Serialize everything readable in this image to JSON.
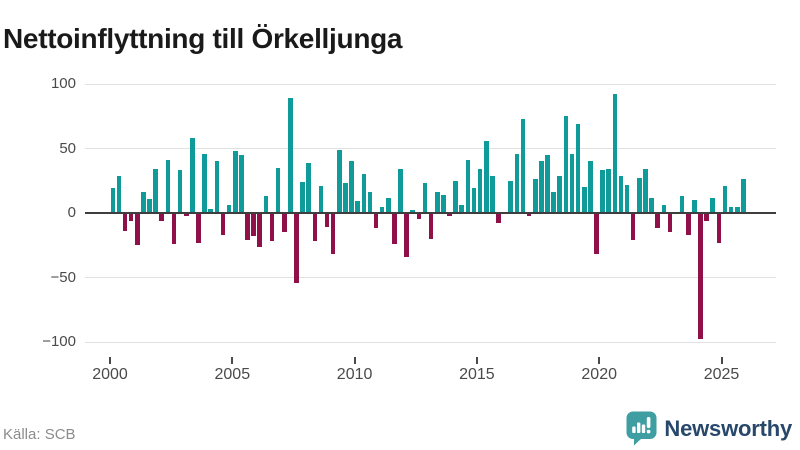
{
  "title": "Nettoinflyttning till Örkelljunga",
  "source": "Källa: SCB",
  "branding": {
    "name": "Newsworthy",
    "icon": "newsworthy-speech-bubble-chart-icon"
  },
  "colors": {
    "positive": "#0e9b9a",
    "negative": "#90104a",
    "zero_axis": "#3e3e3e",
    "grid": "#e1e1e1",
    "tick_label": "#4a4a4a",
    "title": "#1a1a1a",
    "source_text": "#8c8c8c",
    "brand_text": "#28486b",
    "brand_icon": "#3e9ea1"
  },
  "chart_data": {
    "type": "bar",
    "title": "Nettoinflyttning till Örkelljunga",
    "frequency": "quarterly",
    "x_tick_labels": [
      "2000",
      "2005",
      "2010",
      "2015",
      "2020",
      "2025"
    ],
    "y_ticks": [
      100,
      50,
      0,
      -50,
      -100
    ],
    "y_tick_labels": [
      "100",
      "50",
      "0",
      "−50",
      "−100"
    ],
    "ylim": [
      -110,
      105
    ],
    "grid": "horizontal",
    "legend": "none",
    "series_name": "Nettoinflyttning",
    "years": [
      {
        "year": 2000,
        "q": [
          19,
          29,
          -14,
          -6
        ]
      },
      {
        "year": 2001,
        "q": [
          -25,
          16,
          11,
          34
        ]
      },
      {
        "year": 2002,
        "q": [
          -6,
          41,
          -24,
          33
        ]
      },
      {
        "year": 2003,
        "q": [
          -2,
          58,
          -23,
          46
        ]
      },
      {
        "year": 2004,
        "q": [
          3,
          40,
          -17,
          6
        ]
      },
      {
        "year": 2005,
        "q": [
          48,
          45,
          -21,
          -18
        ]
      },
      {
        "year": 2006,
        "q": [
          -26,
          13,
          -22,
          35
        ]
      },
      {
        "year": 2007,
        "q": [
          -15,
          89,
          -54,
          24
        ]
      },
      {
        "year": 2008,
        "q": [
          39,
          -22,
          21,
          -11
        ]
      },
      {
        "year": 2009,
        "q": [
          -32,
          49,
          23,
          40
        ]
      },
      {
        "year": 2010,
        "q": [
          9,
          30,
          16,
          -12
        ]
      },
      {
        "year": 2011,
        "q": [
          5,
          12,
          -24,
          34
        ]
      },
      {
        "year": 2012,
        "q": [
          -34,
          2,
          -5,
          23
        ]
      },
      {
        "year": 2013,
        "q": [
          -20,
          16,
          14,
          -2
        ]
      },
      {
        "year": 2014,
        "q": [
          25,
          6,
          41,
          19
        ]
      },
      {
        "year": 2015,
        "q": [
          34,
          56,
          29,
          -8
        ]
      },
      {
        "year": 2016,
        "q": [
          0,
          25,
          46,
          73
        ]
      },
      {
        "year": 2017,
        "q": [
          -2,
          26,
          40,
          45
        ]
      },
      {
        "year": 2018,
        "q": [
          16,
          29,
          75,
          46
        ]
      },
      {
        "year": 2019,
        "q": [
          69,
          20,
          40,
          -32
        ]
      },
      {
        "year": 2020,
        "q": [
          33,
          34,
          92,
          29
        ]
      },
      {
        "year": 2021,
        "q": [
          22,
          -21,
          27,
          34
        ]
      },
      {
        "year": 2022,
        "q": [
          12,
          -12,
          6,
          -15
        ]
      },
      {
        "year": 2023,
        "q": [
          0,
          13,
          -17,
          10
        ]
      },
      {
        "year": 2024,
        "q": [
          -98,
          -6,
          12,
          -23
        ]
      },
      {
        "year": 2025,
        "q": [
          21,
          5,
          5,
          26
        ]
      }
    ]
  }
}
